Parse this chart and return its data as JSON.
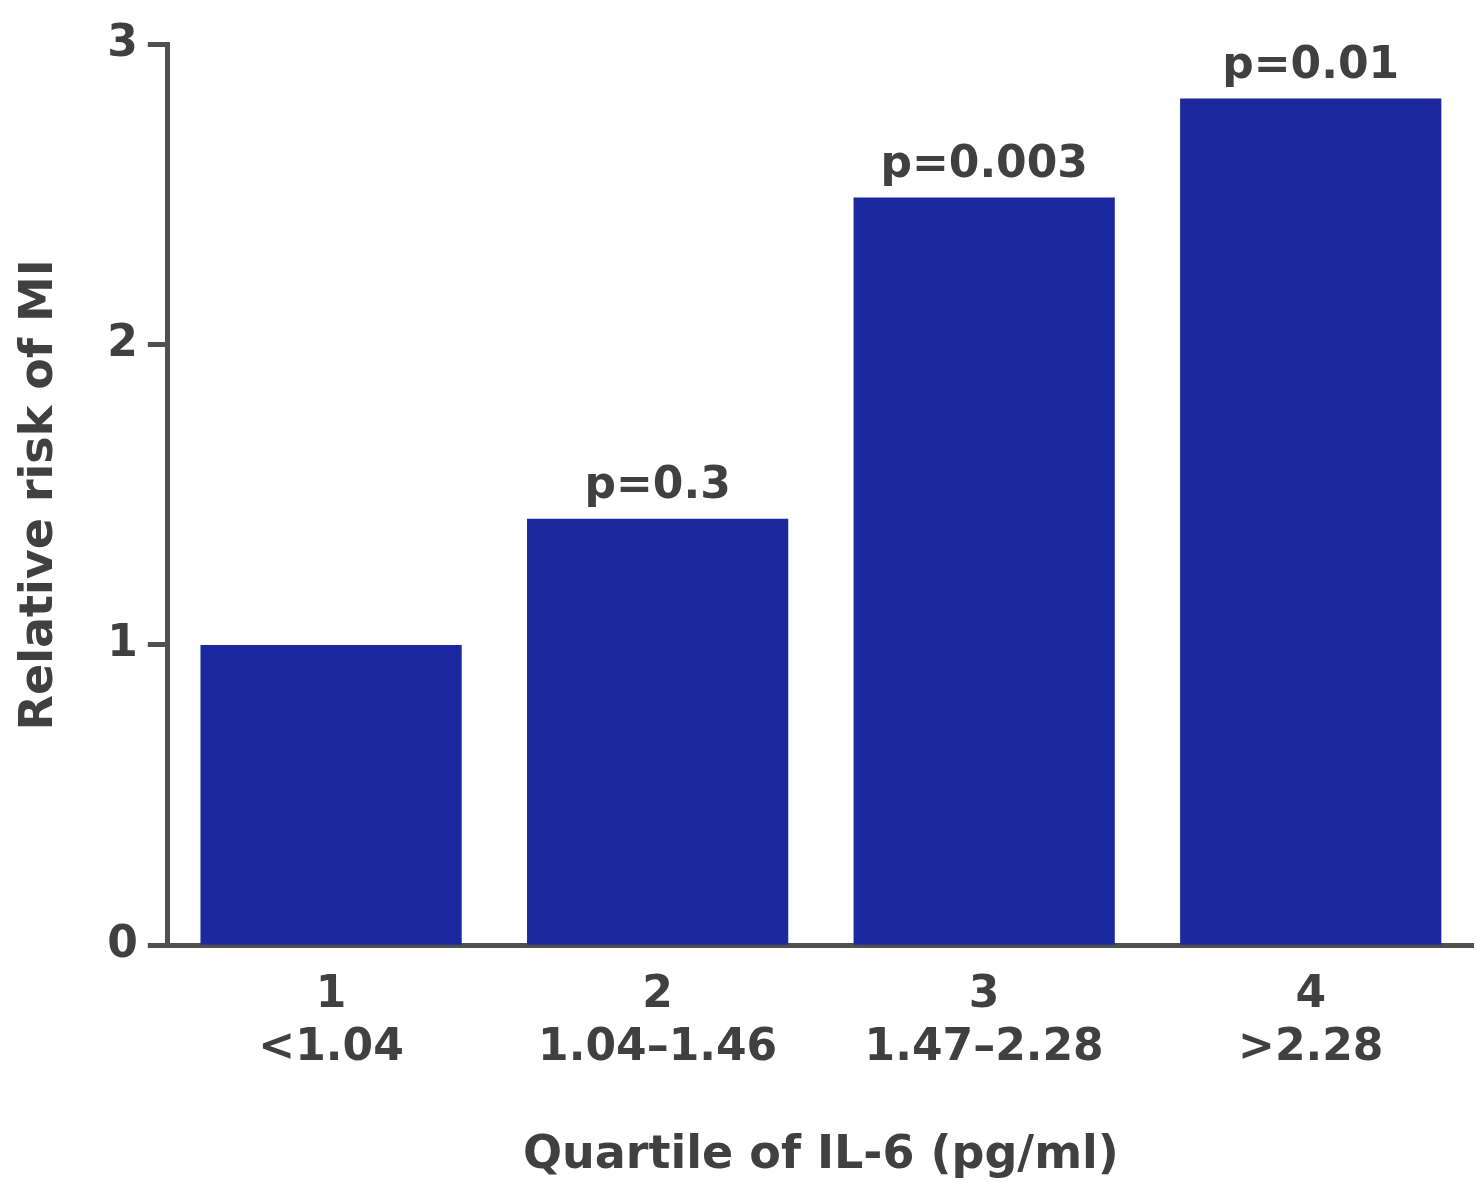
{
  "chart_data": {
    "type": "bar",
    "xlabel": "Quartile of IL-6 (pg/ml)",
    "ylabel": "Relative risk of MI",
    "categories": [
      "1\n<1.04",
      "2\n1.04–1.46",
      "3\n1.47–2.28",
      "4\n>2.28"
    ],
    "values": [
      1.0,
      1.42,
      2.49,
      2.82
    ],
    "color": "#1c28a0",
    "ylim": [
      0,
      3
    ],
    "yticks": [
      0,
      1,
      2,
      3
    ],
    "grid": false,
    "legend": false,
    "annotations": [
      {
        "text": "p=0.3",
        "x": "2\n1.04–1.46",
        "y": 1.42
      },
      {
        "text": "p=0.003",
        "x": "3\n1.47–2.28",
        "y": 2.49
      },
      {
        "text": "p=0.01",
        "x": "4\n>2.28",
        "y": 2.82
      }
    ]
  }
}
